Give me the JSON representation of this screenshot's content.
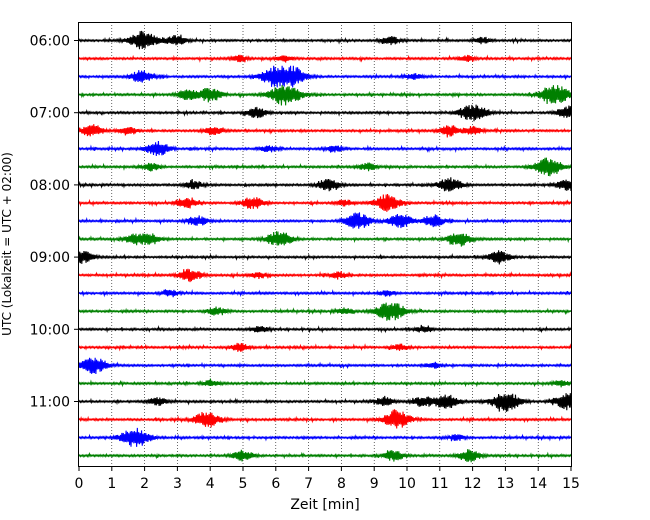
{
  "chart_data": {
    "type": "line",
    "xlabel": "Zeit  [min]",
    "ylabel": "UTC (Lokalzeit = UTC + 02:00)",
    "xlim": [
      0,
      15
    ],
    "x_ticks": [
      "0",
      "1",
      "2",
      "3",
      "4",
      "5",
      "6",
      "7",
      "8",
      "9",
      "10",
      "11",
      "12",
      "13",
      "14",
      "15"
    ],
    "y_ticks": [
      "06:00",
      "07:00",
      "08:00",
      "09:00",
      "10:00",
      "11:00"
    ],
    "grid": "vertical dotted",
    "trace_colors": [
      "#000000",
      "#ff0000",
      "#0000ff",
      "#008000"
    ],
    "trace_interval_min": 15,
    "traces": [
      {
        "start": "06:00",
        "color": "black",
        "events": [
          [
            1.95,
            9
          ],
          [
            2.95,
            5
          ],
          [
            9.5,
            4
          ],
          [
            12.3,
            3
          ]
        ]
      },
      {
        "start": "06:15",
        "color": "red",
        "events": [
          [
            4.9,
            3
          ],
          [
            6.3,
            3
          ],
          [
            11.8,
            3
          ]
        ]
      },
      {
        "start": "06:30",
        "color": "blue",
        "events": [
          [
            1.9,
            6
          ],
          [
            6.0,
            10
          ],
          [
            6.5,
            9
          ],
          [
            10.2,
            3
          ]
        ]
      },
      {
        "start": "06:45",
        "color": "green",
        "events": [
          [
            3.3,
            5
          ],
          [
            4.0,
            7
          ],
          [
            6.3,
            11
          ],
          [
            14.5,
            10
          ]
        ]
      },
      {
        "start": "07:00",
        "color": "black",
        "events": [
          [
            5.4,
            5
          ],
          [
            11.8,
            5
          ],
          [
            12.2,
            6
          ],
          [
            14.9,
            6
          ]
        ]
      },
      {
        "start": "07:15",
        "color": "red",
        "events": [
          [
            0.4,
            6
          ],
          [
            1.5,
            4
          ],
          [
            4.1,
            4
          ],
          [
            11.3,
            5
          ],
          [
            12.0,
            4
          ]
        ]
      },
      {
        "start": "07:30",
        "color": "blue",
        "events": [
          [
            2.4,
            7
          ],
          [
            5.8,
            3
          ],
          [
            7.8,
            3
          ]
        ]
      },
      {
        "start": "07:45",
        "color": "green",
        "events": [
          [
            2.2,
            4
          ],
          [
            8.8,
            4
          ],
          [
            14.3,
            9
          ]
        ]
      },
      {
        "start": "08:00",
        "color": "black",
        "events": [
          [
            3.5,
            4
          ],
          [
            7.6,
            6
          ],
          [
            11.3,
            7
          ],
          [
            14.9,
            6
          ]
        ]
      },
      {
        "start": "08:15",
        "color": "red",
        "events": [
          [
            3.3,
            5
          ],
          [
            5.3,
            6
          ],
          [
            8.1,
            3
          ],
          [
            9.4,
            8
          ]
        ]
      },
      {
        "start": "08:30",
        "color": "blue",
        "events": [
          [
            3.6,
            5
          ],
          [
            8.5,
            8
          ],
          [
            9.8,
            7
          ],
          [
            10.8,
            6
          ]
        ]
      },
      {
        "start": "08:45",
        "color": "green",
        "events": [
          [
            1.7,
            5
          ],
          [
            2.2,
            5
          ],
          [
            6.1,
            8
          ],
          [
            11.6,
            7
          ]
        ]
      },
      {
        "start": "09:00",
        "color": "black",
        "events": [
          [
            0.1,
            6
          ],
          [
            12.8,
            6
          ]
        ]
      },
      {
        "start": "09:15",
        "color": "red",
        "events": [
          [
            3.4,
            6
          ],
          [
            5.5,
            3
          ],
          [
            7.9,
            3
          ]
        ]
      },
      {
        "start": "09:30",
        "color": "blue",
        "events": [
          [
            2.8,
            3
          ],
          [
            9.4,
            3
          ]
        ]
      },
      {
        "start": "09:45",
        "color": "green",
        "events": [
          [
            4.2,
            4
          ],
          [
            8.1,
            3
          ],
          [
            9.5,
            10
          ]
        ]
      },
      {
        "start": "10:00",
        "color": "black",
        "events": [
          [
            5.5,
            3
          ],
          [
            10.5,
            3
          ]
        ]
      },
      {
        "start": "10:15",
        "color": "red",
        "events": [
          [
            4.9,
            4
          ],
          [
            9.8,
            3
          ]
        ]
      },
      {
        "start": "10:30",
        "color": "blue",
        "events": [
          [
            0.45,
            8
          ],
          [
            10.8,
            3
          ]
        ]
      },
      {
        "start": "10:45",
        "color": "green",
        "events": [
          [
            4.0,
            3
          ],
          [
            14.7,
            3
          ]
        ]
      },
      {
        "start": "11:00",
        "color": "black",
        "events": [
          [
            2.4,
            4
          ],
          [
            9.3,
            4
          ],
          [
            10.5,
            5
          ],
          [
            11.2,
            7
          ],
          [
            13.0,
            10
          ],
          [
            14.9,
            8
          ]
        ]
      },
      {
        "start": "11:15",
        "color": "red",
        "events": [
          [
            3.9,
            8
          ],
          [
            9.7,
            9
          ]
        ]
      },
      {
        "start": "11:30",
        "color": "blue",
        "events": [
          [
            1.7,
            10
          ],
          [
            11.5,
            3
          ]
        ]
      },
      {
        "start": "11:45",
        "color": "green",
        "events": [
          [
            5.0,
            5
          ],
          [
            9.6,
            5
          ],
          [
            11.9,
            6
          ]
        ]
      }
    ]
  }
}
